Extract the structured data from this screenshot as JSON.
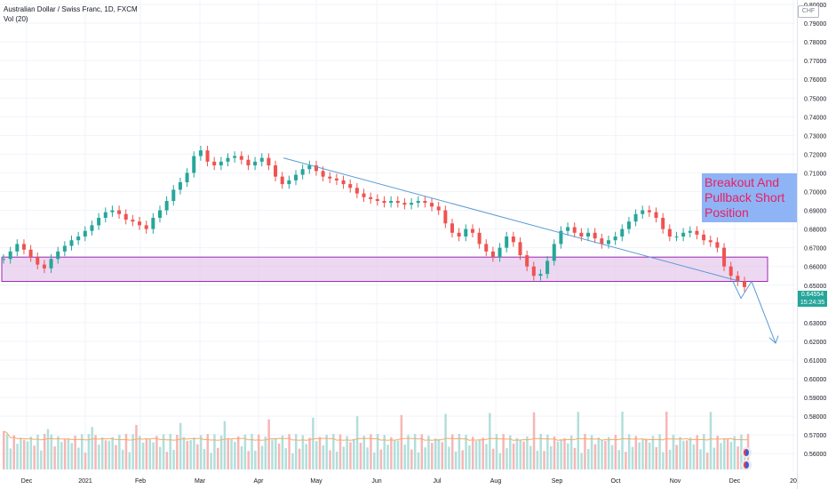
{
  "header": {
    "title": "Australian Dollar / Swiss Franc, 1D, FXCM",
    "indicator": "Vol (20)",
    "currency": "CHF"
  },
  "last_price": {
    "value": "0.64554",
    "countdown": "15:24:35"
  },
  "annotation": {
    "text": "Breakout And Pullback Short Position"
  },
  "colors": {
    "up": "#26a69a",
    "down": "#ef5350",
    "zone_fill": "#e1bee7",
    "zone_border": "#9c27b0",
    "trendline": "#5b9bd5",
    "annotation_bg": "#8fb4f5",
    "annotation_text": "#e91e63",
    "volume_ma": "#f5a96b"
  },
  "chart_data": {
    "type": "candlestick",
    "title": "Australian Dollar / Swiss Franc, 1D, FXCM",
    "x_ticks": [
      "Dec",
      "2021",
      "Feb",
      "Mar",
      "Apr",
      "May",
      "Jun",
      "Jul",
      "Aug",
      "Sep",
      "Oct",
      "Nov",
      "Dec",
      "20"
    ],
    "y_ticks": [
      "0.80000",
      "0.79000",
      "0.78000",
      "0.77000",
      "0.76000",
      "0.75000",
      "0.74000",
      "0.73000",
      "0.72000",
      "0.71000",
      "0.70000",
      "0.69000",
      "0.68000",
      "0.67000",
      "0.66000",
      "0.65000",
      "0.64000",
      "0.63000",
      "0.62000",
      "0.61000",
      "0.60000",
      "0.59000",
      "0.58000",
      "0.57000",
      "0.56000"
    ],
    "ylim": [
      0.555,
      0.802
    ],
    "grid": true,
    "approx_close_path": [
      {
        "x": "Dec",
        "y": 0.664
      },
      {
        "x": "2021",
        "y": 0.674
      },
      {
        "x": "Feb",
        "y": 0.685
      },
      {
        "x": "Mar",
        "y": 0.719
      },
      {
        "x": "Apr",
        "y": 0.711
      },
      {
        "x": "May",
        "y": 0.706
      },
      {
        "x": "Jun",
        "y": 0.694
      },
      {
        "x": "Jul",
        "y": 0.692
      },
      {
        "x": "Aug",
        "y": 0.665
      },
      {
        "x": "Sep",
        "y": 0.656
      },
      {
        "x": "Oct",
        "y": 0.676
      },
      {
        "x": "Nov",
        "y": 0.684
      },
      {
        "x": "Dec",
        "y": 0.649
      }
    ],
    "support_zone": {
      "from": 0.652,
      "to": 0.665
    },
    "trendline": {
      "start": {
        "x": "Apr",
        "y": 0.718
      },
      "end": {
        "x": "Dec",
        "y": 0.652
      }
    },
    "projection_arrow": {
      "to": {
        "x": "Dec",
        "y": 0.619
      }
    },
    "volume_series_name": "Vol (20)"
  }
}
